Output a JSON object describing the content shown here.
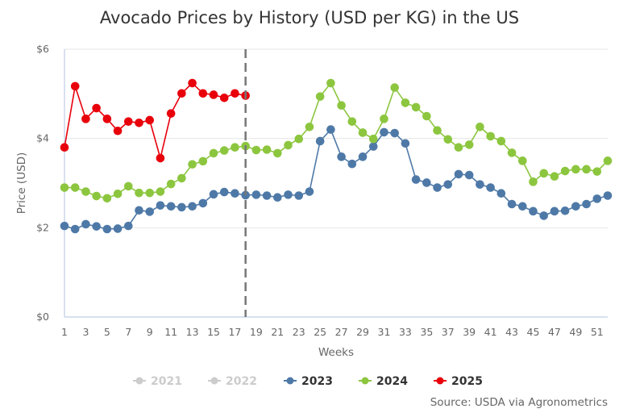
{
  "chart_data": {
    "type": "line",
    "title": "Avocado Prices by History (USD per KG) in the US",
    "xlabel": "Weeks",
    "ylabel": "Price (USD)",
    "ylim": [
      0,
      6
    ],
    "xlim": [
      1,
      52
    ],
    "y_ticks": [
      "$0",
      "$2",
      "$4",
      "$6"
    ],
    "y_tick_values": [
      0,
      2,
      4,
      6
    ],
    "x_ticks": [
      "1",
      "3",
      "5",
      "7",
      "9",
      "11",
      "13",
      "15",
      "17",
      "19",
      "21",
      "23",
      "25",
      "27",
      "29",
      "31",
      "33",
      "35",
      "37",
      "39",
      "41",
      "43",
      "45",
      "47",
      "49",
      "51"
    ],
    "x_tick_values": [
      1,
      3,
      5,
      7,
      9,
      11,
      13,
      15,
      17,
      19,
      21,
      23,
      25,
      27,
      29,
      31,
      33,
      35,
      37,
      39,
      41,
      43,
      45,
      47,
      49,
      51
    ],
    "grid": "horizontal",
    "current_week_marker": 18,
    "legend_position": "bottom",
    "source": "Source: USDA via Agronometrics",
    "x": [
      1,
      2,
      3,
      4,
      5,
      6,
      7,
      8,
      9,
      10,
      11,
      12,
      13,
      14,
      15,
      16,
      17,
      18,
      19,
      20,
      21,
      22,
      23,
      24,
      25,
      26,
      27,
      28,
      29,
      30,
      31,
      32,
      33,
      34,
      35,
      36,
      37,
      38,
      39,
      40,
      41,
      42,
      43,
      44,
      45,
      46,
      47,
      48,
      49,
      50,
      51,
      52
    ],
    "series": [
      {
        "name": "2021",
        "visible": false,
        "color": "#cccccc",
        "values": []
      },
      {
        "name": "2022",
        "visible": false,
        "color": "#cccccc",
        "values": []
      },
      {
        "name": "2023",
        "visible": true,
        "color": "#4e79a7",
        "values": [
          2.04,
          1.97,
          2.08,
          2.03,
          1.97,
          1.98,
          2.04,
          2.39,
          2.36,
          2.5,
          2.48,
          2.46,
          2.48,
          2.55,
          2.75,
          2.8,
          2.77,
          2.73,
          2.74,
          2.72,
          2.68,
          2.74,
          2.72,
          2.81,
          3.94,
          4.2,
          3.59,
          3.43,
          3.59,
          3.82,
          4.14,
          4.12,
          3.89,
          3.08,
          3.01,
          2.9,
          2.97,
          3.2,
          3.18,
          2.97,
          2.9,
          2.77,
          2.53,
          2.48,
          2.37,
          2.27,
          2.37,
          2.38,
          2.48,
          2.53,
          2.65,
          2.72
        ]
      },
      {
        "name": "2024",
        "visible": true,
        "color": "#8cc63f",
        "values": [
          2.9,
          2.9,
          2.81,
          2.71,
          2.66,
          2.76,
          2.93,
          2.78,
          2.78,
          2.81,
          2.98,
          3.11,
          3.42,
          3.49,
          3.67,
          3.73,
          3.8,
          3.83,
          3.74,
          3.75,
          3.67,
          3.85,
          3.99,
          4.26,
          4.94,
          5.24,
          4.74,
          4.38,
          4.13,
          3.99,
          4.44,
          5.14,
          4.8,
          4.7,
          4.5,
          4.18,
          3.98,
          3.8,
          3.86,
          4.26,
          4.05,
          3.94,
          3.68,
          3.5,
          3.03,
          3.22,
          3.15,
          3.27,
          3.31,
          3.31,
          3.26,
          3.5
        ]
      },
      {
        "name": "2025",
        "visible": true,
        "color": "#e8000b",
        "values": [
          3.8,
          5.17,
          4.44,
          4.68,
          4.44,
          4.17,
          4.38,
          4.35,
          4.41,
          3.56,
          4.56,
          5.01,
          5.24,
          5.01,
          4.98,
          4.91,
          5.01,
          4.96
        ]
      }
    ]
  },
  "colors": {
    "hidden_series": "#cccccc",
    "grid": "#e6e6e6",
    "axis": "#ccd6eb",
    "marker_line": "#777777"
  }
}
